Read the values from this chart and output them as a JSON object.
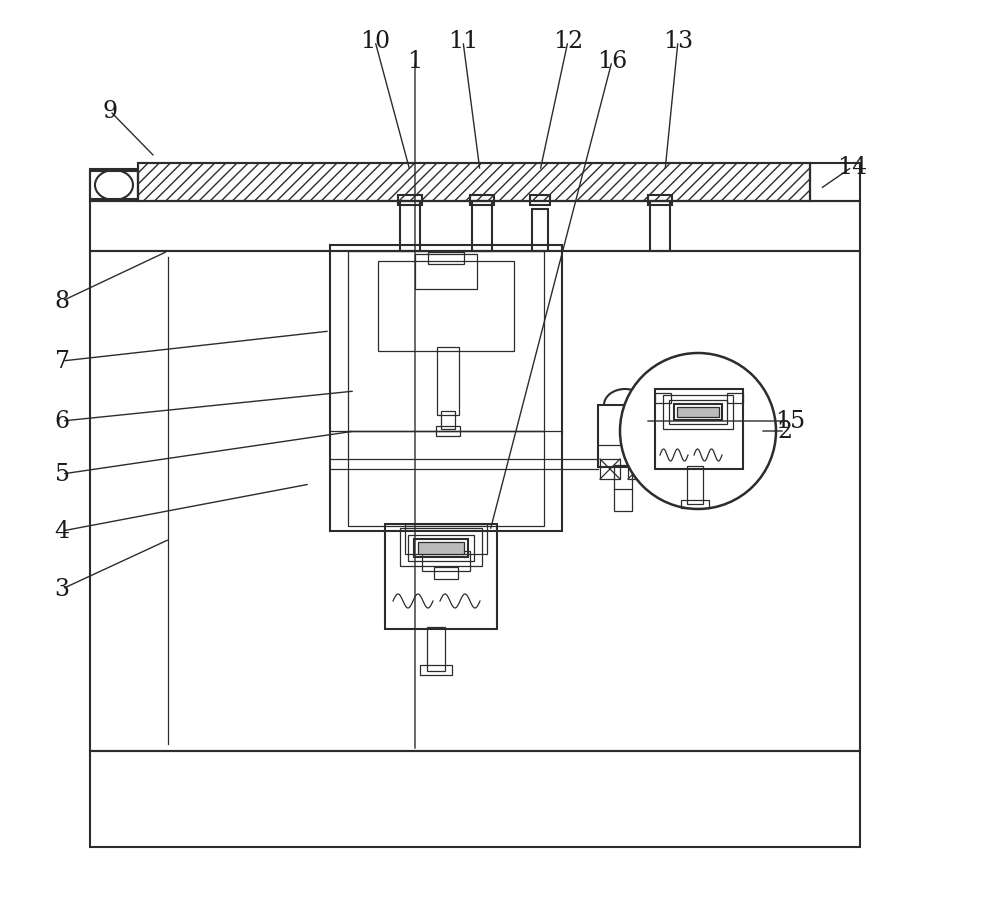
{
  "background_color": "#ffffff",
  "line_color": "#2c2c2c",
  "lw": 1.5,
  "tlw": 0.9,
  "figsize": [
    10.0,
    9.2
  ],
  "dpi": 100,
  "ann": [
    [
      "9",
      110,
      808,
      155,
      762
    ],
    [
      "10",
      375,
      878,
      410,
      748
    ],
    [
      "11",
      463,
      878,
      480,
      748
    ],
    [
      "12",
      568,
      878,
      540,
      748
    ],
    [
      "13",
      678,
      878,
      665,
      748
    ],
    [
      "14",
      852,
      752,
      820,
      730
    ],
    [
      "8",
      62,
      618,
      168,
      668
    ],
    [
      "7",
      62,
      558,
      330,
      588
    ],
    [
      "6",
      62,
      498,
      355,
      528
    ],
    [
      "5",
      62,
      445,
      355,
      488
    ],
    [
      "4",
      62,
      388,
      310,
      435
    ],
    [
      "3",
      62,
      330,
      170,
      380
    ],
    [
      "15",
      790,
      498,
      645,
      498
    ],
    [
      "2",
      785,
      488,
      760,
      488
    ],
    [
      "1",
      415,
      858,
      415,
      168
    ],
    [
      "16",
      612,
      858,
      490,
      388
    ]
  ]
}
